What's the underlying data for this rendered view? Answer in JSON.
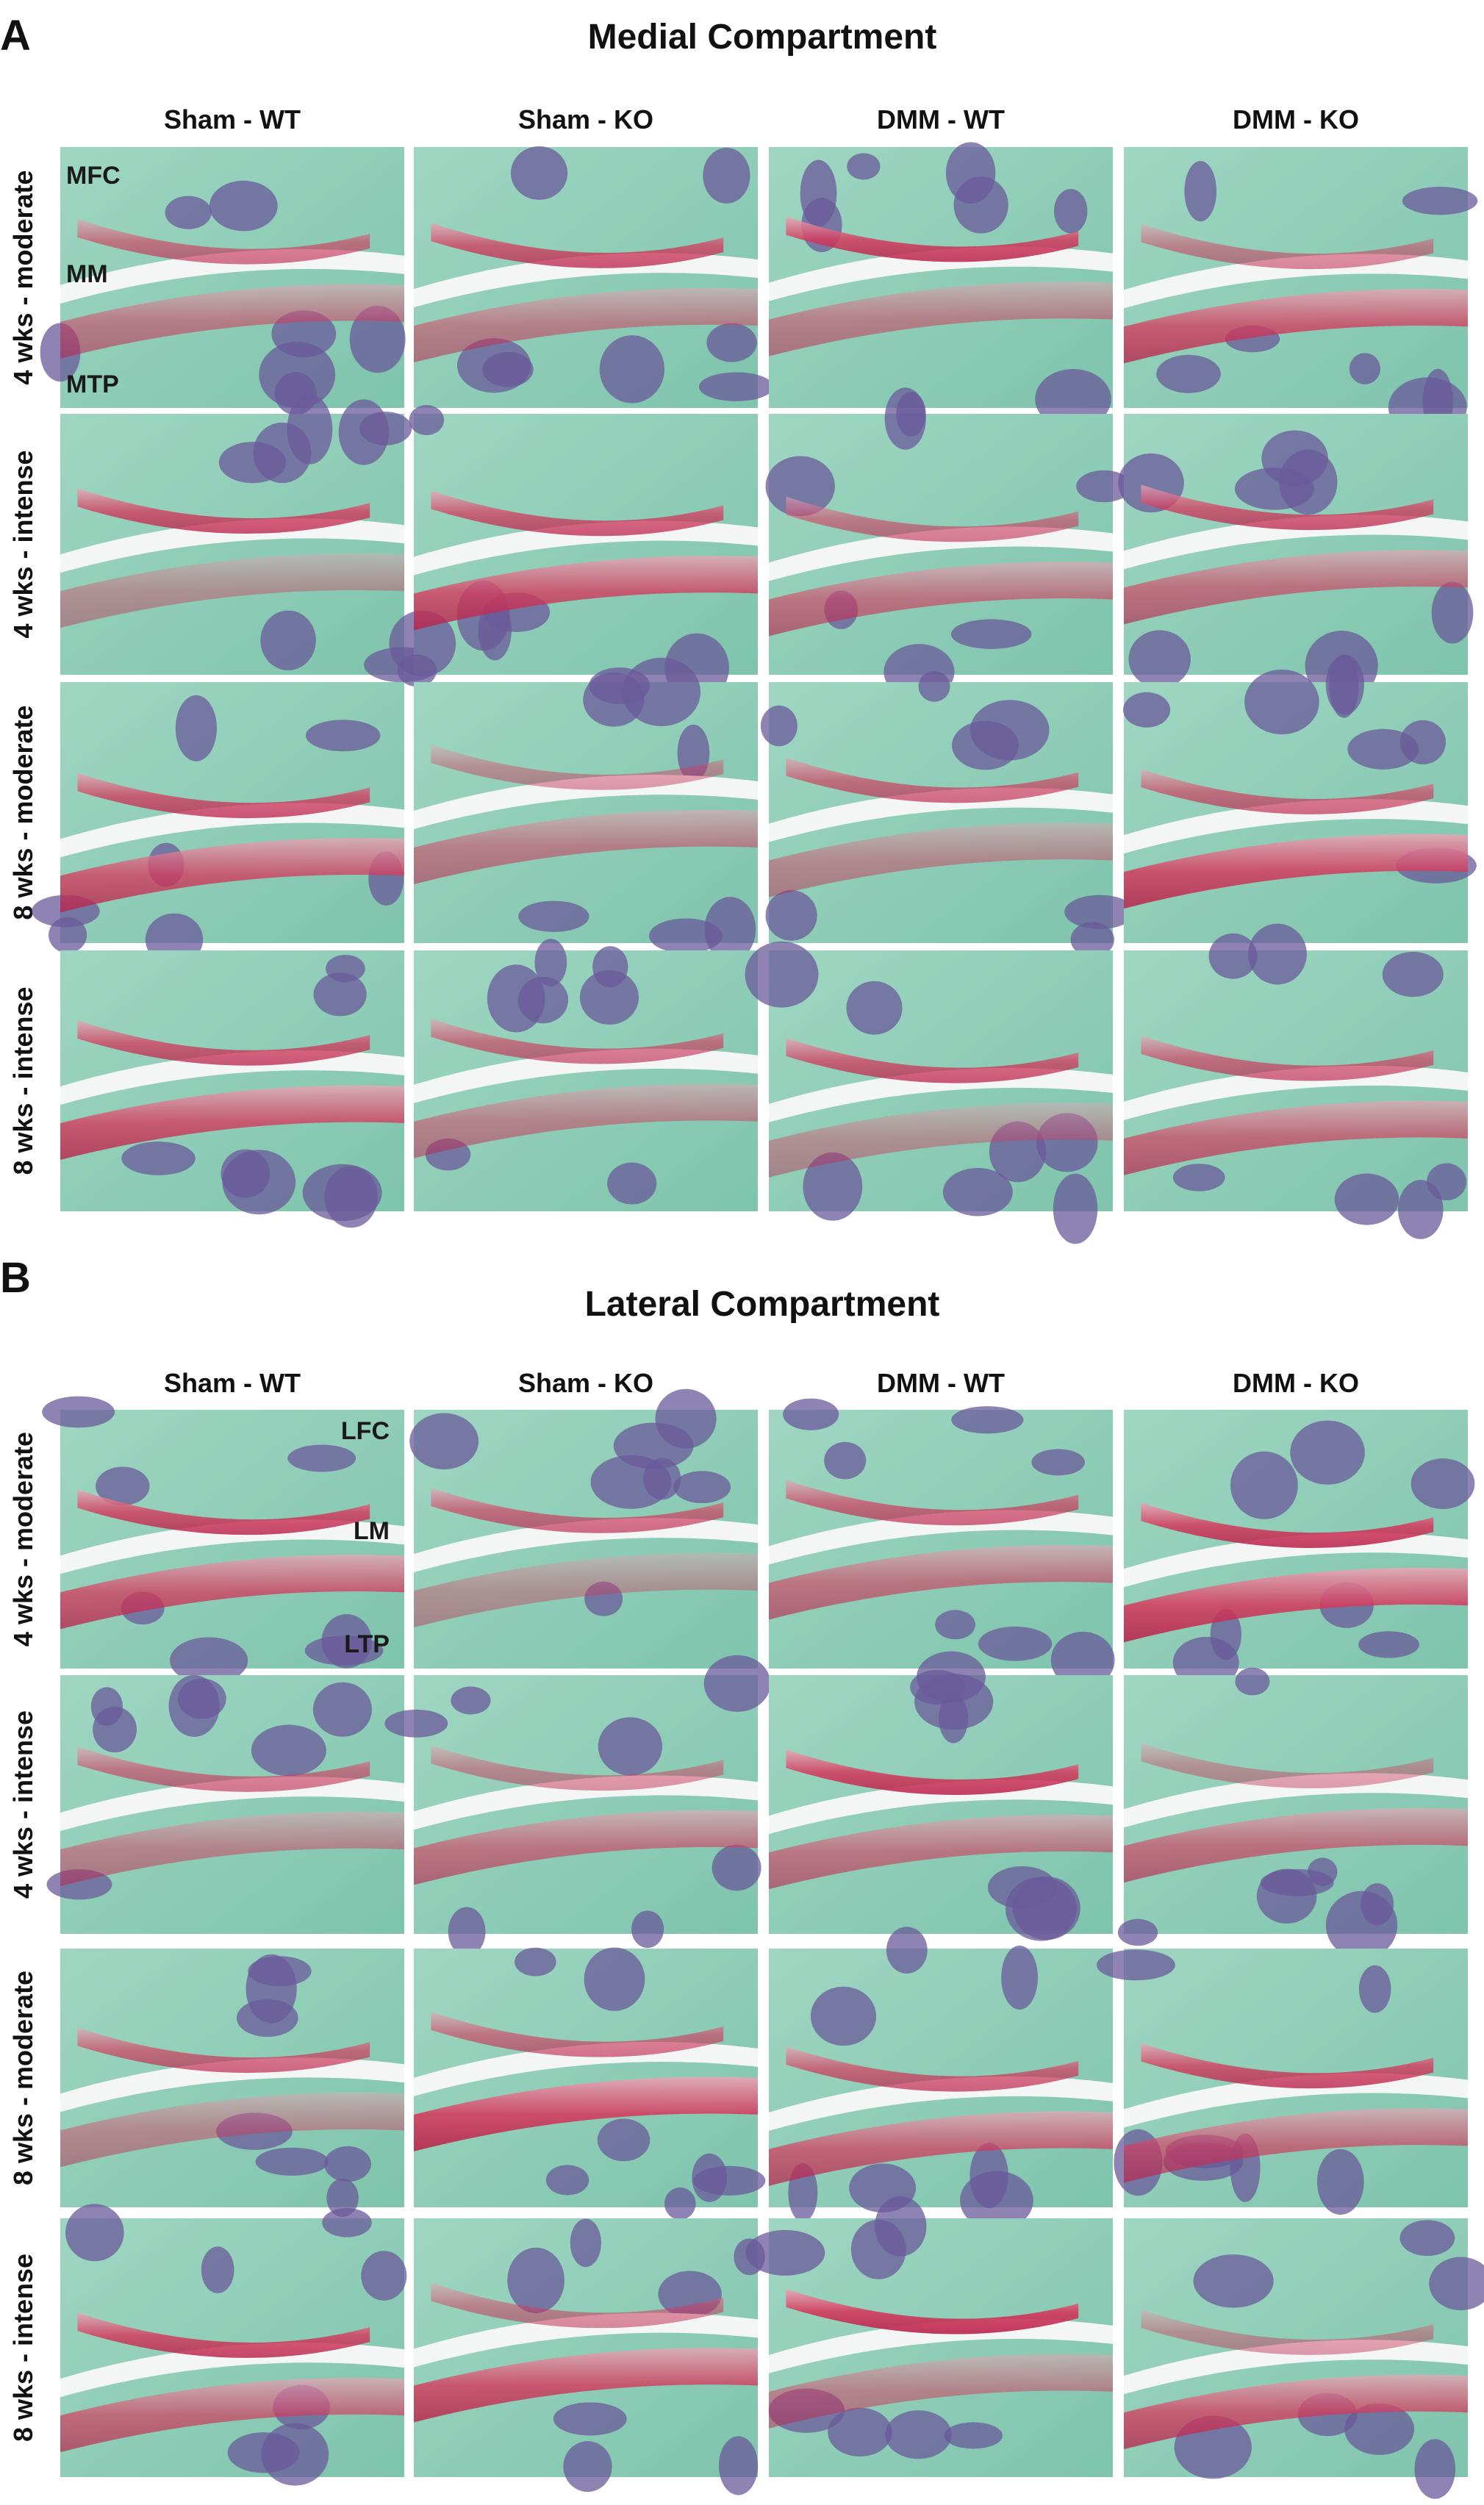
{
  "panels": [
    {
      "letter": "A",
      "title": "Medial Compartment",
      "columns": [
        "Sham - WT",
        "Sham - KO",
        "DMM - WT",
        "DMM - KO"
      ],
      "rows": [
        "4 wks - moderate",
        "4 wks - intense",
        "8 wks - moderate",
        "8 wks - intense"
      ],
      "labels": [
        "MFC",
        "MM",
        "MTP"
      ]
    },
    {
      "letter": "B",
      "title": "Lateral Compartment",
      "columns": [
        "Sham - WT",
        "Sham - KO",
        "DMM - WT",
        "DMM - KO"
      ],
      "rows": [
        "4 wks - moderate",
        "4 wks - intense",
        "8 wks - moderate",
        "8 wks - intense"
      ],
      "labels": [
        "LFC",
        "LM",
        "LTP"
      ]
    }
  ]
}
